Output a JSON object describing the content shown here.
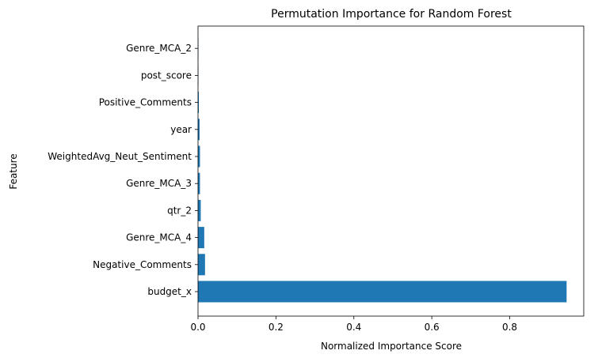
{
  "chart_data": {
    "type": "bar",
    "orientation": "horizontal",
    "title": "Permutation Importance for Random Forest",
    "xlabel": "Normalized Importance Score",
    "ylabel": "Feature",
    "categories": [
      "budget_x",
      "Negative_Comments",
      "Genre_MCA_4",
      "qtr_2",
      "Genre_MCA_3",
      "WeightedAvg_Neut_Sentiment",
      "year",
      "Positive_Comments",
      "post_score",
      "Genre_MCA_2"
    ],
    "values": [
      0.946,
      0.018,
      0.016,
      0.007,
      0.005,
      0.005,
      0.004,
      0.002,
      0.001,
      0.001
    ],
    "xlim": [
      0,
      0.99
    ],
    "xticks": [
      0.0,
      0.2,
      0.4,
      0.6,
      0.8
    ],
    "xtick_labels": [
      "0.0",
      "0.2",
      "0.4",
      "0.6",
      "0.8"
    ],
    "bar_color": "#1f77b4",
    "grid": false
  }
}
